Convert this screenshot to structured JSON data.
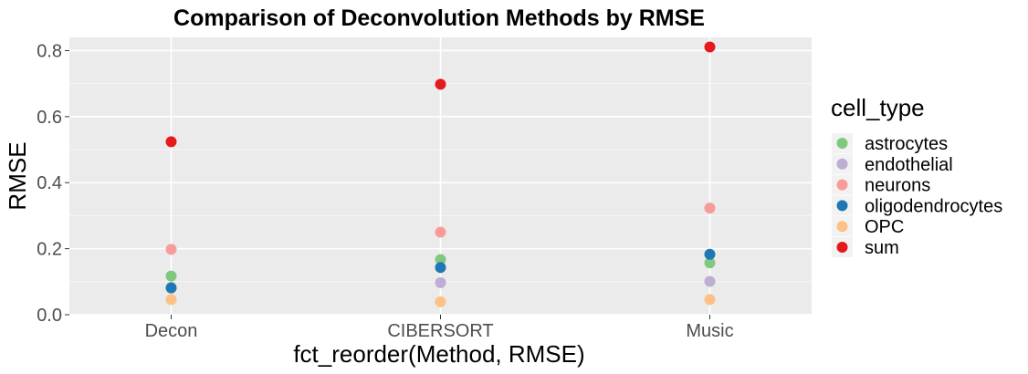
{
  "chart_data": {
    "type": "scatter",
    "title": "Comparison of Deconvolution Methods by RMSE",
    "xlabel": "fct_reorder(Method, RMSE)",
    "ylabel": "RMSE",
    "categories": [
      "Decon",
      "CIBERSORT",
      "Music"
    ],
    "ylim": [
      0,
      0.84
    ],
    "yticks": [
      "0.0",
      "0.2",
      "0.4",
      "0.6",
      "0.8"
    ],
    "grid": true,
    "legend_title": "cell_type",
    "legend_position": "right",
    "series": [
      {
        "name": "astrocytes",
        "color": "#7fc97f",
        "values": [
          0.117,
          0.167,
          0.157
        ]
      },
      {
        "name": "endothelial",
        "color": "#beaed4",
        "values": [
          0.083,
          0.097,
          0.101
        ]
      },
      {
        "name": "neurons",
        "color": "#f99b98",
        "values": [
          0.198,
          0.25,
          0.323
        ]
      },
      {
        "name": "oligodendrocytes",
        "color": "#1f78b4",
        "values": [
          0.081,
          0.143,
          0.183
        ]
      },
      {
        "name": "OPC",
        "color": "#fdc086",
        "values": [
          0.046,
          0.039,
          0.046
        ]
      },
      {
        "name": "sum",
        "color": "#e41a1c",
        "values": [
          0.524,
          0.698,
          0.811
        ]
      }
    ]
  }
}
